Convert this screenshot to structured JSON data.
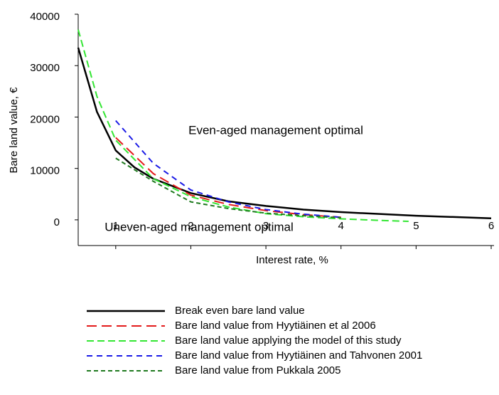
{
  "chart_data": {
    "type": "line",
    "xlabel": "Interest rate, %",
    "ylabel": "Bare land value, €",
    "annotations": [
      "Even-aged management optimal",
      "Uneven-aged management optimal"
    ],
    "xlim": [
      0.5,
      6
    ],
    "xticks": [
      1,
      2,
      3,
      4,
      5,
      6
    ],
    "ylim": [
      -5000,
      40000
    ],
    "yticks": [
      0,
      10000,
      20000,
      30000,
      40000
    ],
    "grid": false,
    "legend": "bottom",
    "series": [
      {
        "name": "Break even bare land value",
        "color": "#000000",
        "dash": "none",
        "x": [
          0.5,
          0.75,
          1,
          1.25,
          1.5,
          2,
          2.5,
          3,
          3.5,
          4,
          5,
          6
        ],
        "values": [
          33500,
          21000,
          13500,
          10200,
          8000,
          5200,
          3600,
          2700,
          2000,
          1500,
          800,
          300
        ]
      },
      {
        "name": "Bare land value from Hyytiäinen et al 2006",
        "color": "#e31a1a",
        "dash": "14,7",
        "x": [
          1,
          1.5,
          2,
          2.5,
          3,
          3.5,
          4
        ],
        "values": [
          16000,
          9000,
          4800,
          3000,
          1800,
          1000,
          500
        ]
      },
      {
        "name": "Bare land value applying the model of this study",
        "color": "#33e633",
        "dash": "10,5",
        "x": [
          0.5,
          0.75,
          1,
          1.5,
          2,
          2.5,
          3,
          3.5,
          4,
          4.5,
          4.9
        ],
        "values": [
          37000,
          24000,
          15500,
          8000,
          4500,
          2500,
          1200,
          600,
          200,
          -100,
          -300
        ]
      },
      {
        "name": "Bare land value from Hyytiäinen and Tahvonen 2001",
        "color": "#1a1ae6",
        "dash": "8,6",
        "x": [
          1,
          1.5,
          2,
          2.5,
          3,
          3.5,
          4
        ],
        "values": [
          19300,
          11000,
          5800,
          3500,
          2000,
          1100,
          500
        ]
      },
      {
        "name": "Bare land value from Pukkala 2005",
        "color": "#1f7a1f",
        "dash": "6,4",
        "x": [
          1,
          1.5,
          2,
          2.5,
          3,
          3.5,
          4
        ],
        "values": [
          12000,
          7500,
          3500,
          2200,
          1300,
          800,
          400
        ]
      }
    ]
  }
}
